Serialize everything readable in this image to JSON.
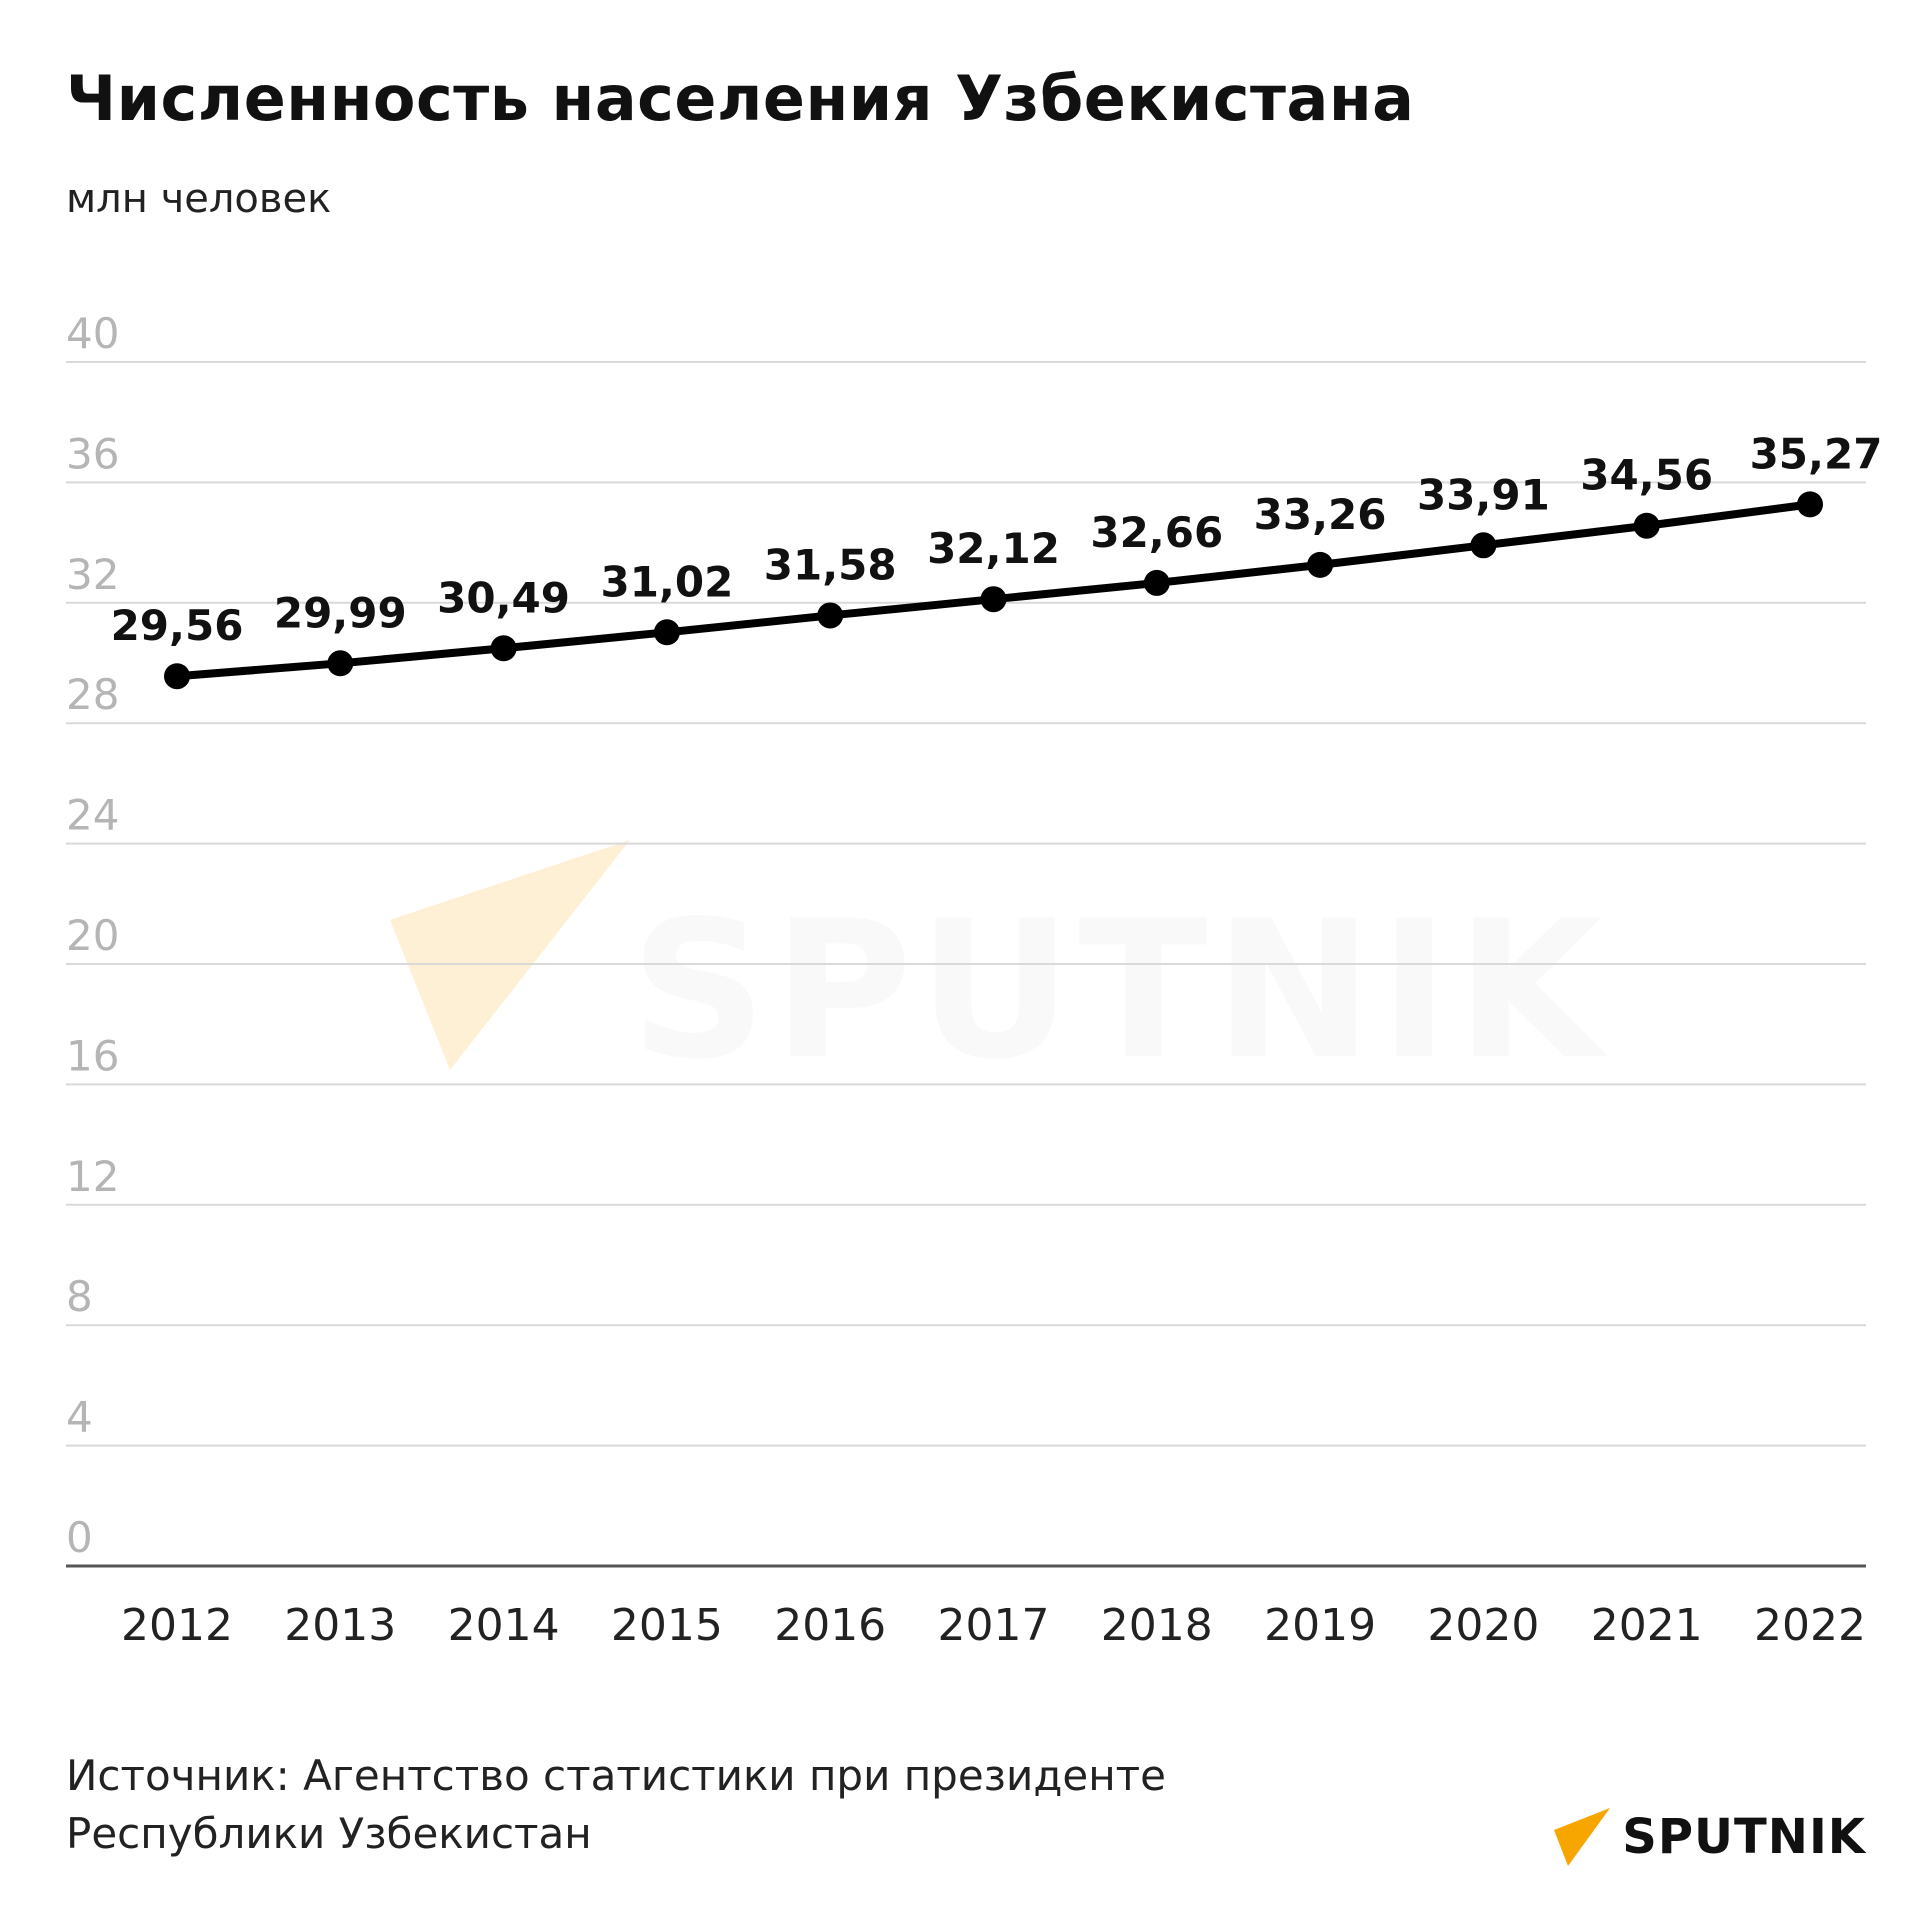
{
  "chart_data": {
    "type": "line",
    "title": "Численность населения Узбекистана",
    "ylabel": "млн человек",
    "categories": [
      "2012",
      "2013",
      "2014",
      "2015",
      "2016",
      "2017",
      "2018",
      "2019",
      "2020",
      "2021",
      "2022"
    ],
    "values": [
      29.56,
      29.99,
      30.49,
      31.02,
      31.58,
      32.12,
      32.66,
      33.26,
      33.91,
      34.56,
      35.27
    ],
    "value_labels": [
      "29,56",
      "29,99",
      "30,49",
      "31,02",
      "31,58",
      "32,12",
      "32,66",
      "33,26",
      "33,91",
      "34,56",
      "35,27"
    ],
    "yticks": [
      "0",
      "4",
      "8",
      "12",
      "16",
      "20",
      "24",
      "28",
      "32",
      "36",
      "40"
    ],
    "ylim": [
      0,
      40
    ],
    "grid": true,
    "colors": {
      "line": "#000000",
      "grid": "#d9d9d9",
      "axis": "#555555"
    }
  },
  "source": {
    "line1": "Источник: Агентство статистики при президенте",
    "line2": "Республики Узбекистан"
  },
  "logo": {
    "text": "SPUTNIK",
    "icon": "sputnik-arrow-icon",
    "accent": "#f7a600"
  },
  "watermark": {
    "text": "SPUTNIK",
    "icon": "sputnik-arrow-icon"
  }
}
